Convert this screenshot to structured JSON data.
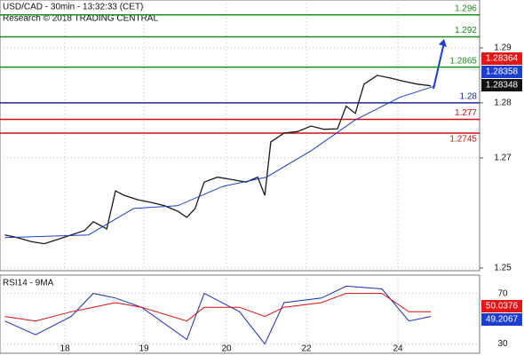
{
  "chart_data": {
    "type": "line",
    "title": "USD/CAD - 30min - 13:32:33 (CET)",
    "subtitle": "Research © 2018 TRADING CENTRAL",
    "x": [
      17.24,
      17.4,
      17.57,
      17.74,
      17.91,
      18.08,
      18.25,
      18.36,
      18.53,
      18.64,
      18.75,
      18.92,
      19.09,
      19.25,
      19.41,
      19.52,
      19.62,
      19.73,
      19.89,
      20.11,
      20.49,
      20.78,
      20.96,
      21.11,
      21.44,
      21.78,
      22.1,
      22.39,
      22.68,
      22.87,
      23.07,
      23.26,
      23.55,
      23.84,
      24.14,
      24.43,
      24.72
    ],
    "xlim": [
      17.18,
      25.79
    ],
    "xticks": [
      18,
      19,
      20,
      22,
      24
    ],
    "ylim": [
      1.2495,
      1.2987
    ],
    "yticks": [
      1.25,
      1.27,
      1.28,
      1.29
    ],
    "grid": true,
    "series": [
      {
        "color": "#1a1a1a",
        "values": [
          1.256,
          1.2555,
          1.2548,
          1.2544,
          1.2552,
          1.256,
          1.2568,
          1.2584,
          1.2571,
          1.264,
          1.2632,
          1.2624,
          1.2619,
          1.2613,
          1.2603,
          1.2592,
          1.2608,
          1.2656,
          1.2665,
          1.2661,
          1.2656,
          1.2665,
          1.2632,
          1.2729,
          1.2745,
          1.2748,
          1.2758,
          1.2752,
          1.2753,
          1.2794,
          1.2781,
          1.2834,
          1.285,
          1.2845,
          1.2839,
          1.2834,
          1.2831
        ]
      },
      {
        "color": "#1f3fbf",
        "x": [
          17.24,
          18.3,
          18.87,
          19.41,
          19.95,
          21.0,
          22.1,
          23.07,
          24.04,
          24.82
        ],
        "values": [
          1.2555,
          1.256,
          1.2608,
          1.2613,
          1.2648,
          1.2665,
          1.2713,
          1.2769,
          1.281,
          1.2831
        ]
      }
    ],
    "levels": {
      "values": [
        1.296,
        1.292,
        1.2865,
        1.28,
        1.277,
        1.2745
      ],
      "colors": [
        "#1e8c1e",
        "#1e8c1e",
        "#1e8c1e",
        "#1a2a9a",
        "#d01010",
        "#d01010"
      ]
    },
    "last_prices": {
      "values": [
        1.28364,
        1.28358,
        1.28348
      ],
      "colors": [
        "#e01818",
        "#1d3fd0",
        "#111111"
      ]
    },
    "rsi": {
      "title": "RSI14 - 9MA",
      "x": [
        17.24,
        17.63,
        18.08,
        18.36,
        18.64,
        18.97,
        19.52,
        19.73,
        20.33,
        20.96,
        21.44,
        22.33,
        22.87,
        23.65,
        24.24,
        24.72
      ],
      "ylim": [
        22.7,
        84.5
      ],
      "yticks": [
        30,
        70
      ],
      "series": [
        {
          "color": "#1d2fb0",
          "values": [
            48.2,
            37.3,
            51.8,
            70,
            66.4,
            59.1,
            33.6,
            70,
            55.5,
            30,
            62.7,
            66.4,
            75.8,
            73.6,
            48.2,
            51.8
          ]
        },
        {
          "color": "#d01010",
          "values": [
            51.8,
            48.2,
            55.5,
            59.1,
            62.7,
            59.1,
            48.2,
            59.1,
            59.1,
            51.8,
            59.1,
            62.7,
            70,
            70,
            55.5,
            55.5
          ]
        }
      ],
      "last_values": {
        "values": [
          50.0376,
          49.2067
        ],
        "colors": [
          "#e01818",
          "#1d3fd0"
        ]
      }
    }
  }
}
